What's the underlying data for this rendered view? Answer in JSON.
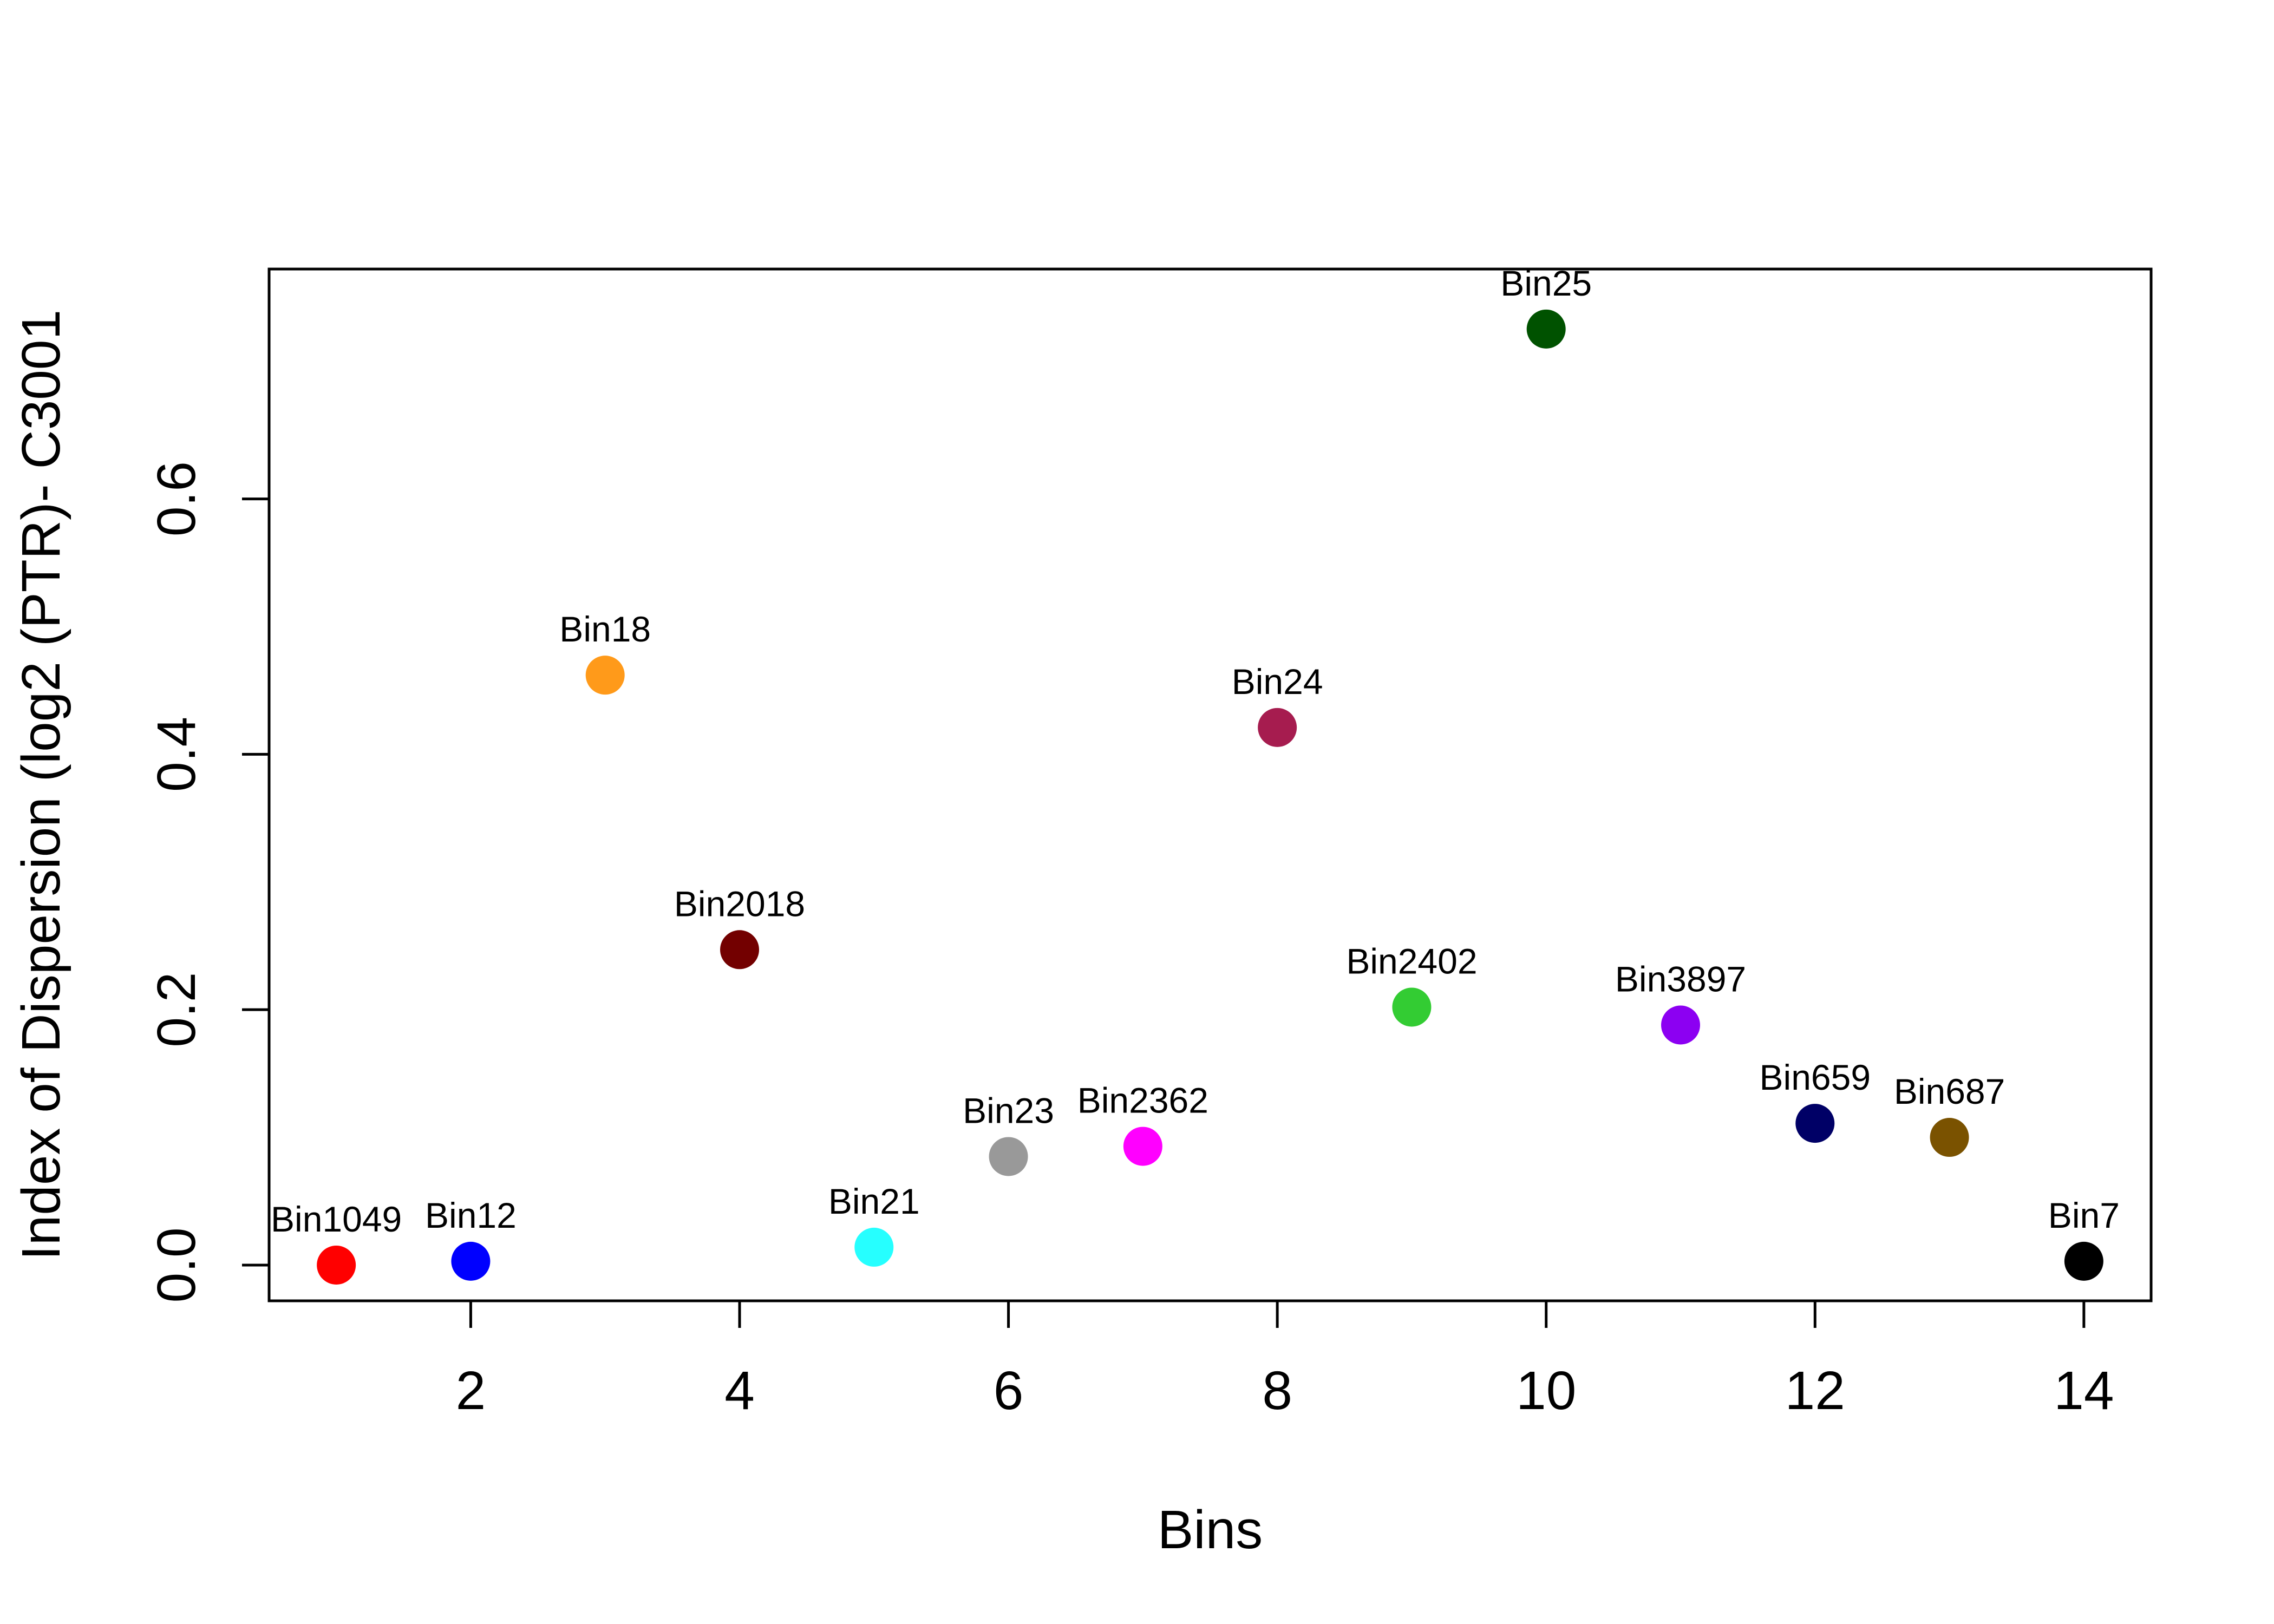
{
  "chart_data": {
    "type": "scatter",
    "xlabel": "Bins",
    "ylabel": "Index of Dispersion (log2 (PTR)- C3001",
    "xlim": [
      0.5,
      14.5
    ],
    "ylim": [
      -0.028,
      0.78
    ],
    "x_ticks": [
      2,
      4,
      6,
      8,
      10,
      12,
      14
    ],
    "y_ticks": [
      0.0,
      0.2,
      0.4,
      0.6
    ],
    "x_tick_labels": [
      "2",
      "4",
      "6",
      "8",
      "10",
      "12",
      "14"
    ],
    "y_tick_labels": [
      "0.0",
      "0.2",
      "0.4",
      "0.6"
    ],
    "grid": false,
    "legend": "none",
    "points": [
      {
        "label": "Bin1049",
        "x": 1,
        "y": 0.0,
        "color": "#ff0000"
      },
      {
        "label": "Bin12",
        "x": 2,
        "y": 0.003,
        "color": "#0000ff"
      },
      {
        "label": "Bin18",
        "x": 3,
        "y": 0.462,
        "color": "#ff9a1a"
      },
      {
        "label": "Bin2018",
        "x": 4,
        "y": 0.247,
        "color": "#730000"
      },
      {
        "label": "Bin21",
        "x": 5,
        "y": 0.014,
        "color": "#26ffff"
      },
      {
        "label": "Bin23",
        "x": 6,
        "y": 0.085,
        "color": "#999999"
      },
      {
        "label": "Bin2362",
        "x": 7,
        "y": 0.093,
        "color": "#ff00ff"
      },
      {
        "label": "Bin24",
        "x": 8,
        "y": 0.421,
        "color": "#a61c4f"
      },
      {
        "label": "Bin2402",
        "x": 9,
        "y": 0.202,
        "color": "#33cc33"
      },
      {
        "label": "Bin25",
        "x": 10,
        "y": 0.733,
        "color": "#005200"
      },
      {
        "label": "Bin3897",
        "x": 11,
        "y": 0.188,
        "color": "#8c00f2"
      },
      {
        "label": "Bin659",
        "x": 12,
        "y": 0.111,
        "color": "#000066"
      },
      {
        "label": "Bin687",
        "x": 13,
        "y": 0.1,
        "color": "#7a5200"
      },
      {
        "label": "Bin7",
        "x": 14,
        "y": 0.003,
        "color": "#000000"
      }
    ]
  }
}
